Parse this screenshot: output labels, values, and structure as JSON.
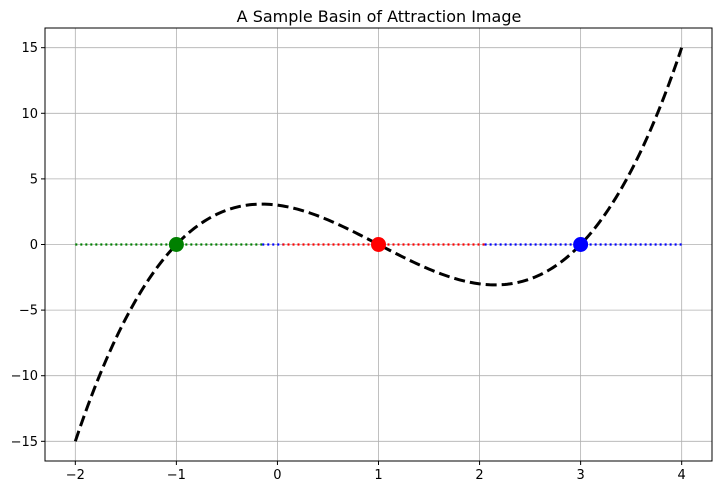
{
  "chart_data": {
    "type": "line",
    "title": "A Sample Basin of Attraction Image",
    "xlabel": "",
    "ylabel": "",
    "xlim": [
      -2.3,
      4.3
    ],
    "ylim": [
      -16.5,
      16.5
    ],
    "x_ticks": [
      -2,
      -1,
      0,
      1,
      2,
      3,
      4
    ],
    "x_tick_labels": [
      "−2",
      "−1",
      "0",
      "1",
      "2",
      "3",
      "4"
    ],
    "y_ticks": [
      -15,
      -10,
      -5,
      0,
      5,
      10,
      15
    ],
    "y_tick_labels": [
      "−15",
      "−10",
      "−5",
      "0",
      "5",
      "10",
      "15"
    ],
    "grid": true,
    "legend": "none",
    "curve": {
      "function": "(x+1)(x-1)(x-3)",
      "style": "dashed",
      "color": "#000000",
      "x": [
        -2.0,
        -1.75,
        -1.5,
        -1.25,
        -1.0,
        -0.75,
        -0.5,
        -0.25,
        0.0,
        0.25,
        0.5,
        0.75,
        1.0,
        1.25,
        1.5,
        1.75,
        2.0,
        2.25,
        2.5,
        2.75,
        3.0,
        3.25,
        3.5,
        3.75,
        4.0
      ],
      "y": [
        -15.0,
        -9.92,
        -5.63,
        -2.11,
        0.0,
        1.64,
        2.63,
        3.05,
        3.0,
        2.58,
        1.88,
        0.98,
        0.0,
        -0.98,
        -1.88,
        -2.58,
        -3.0,
        -3.05,
        -2.63,
        -1.64,
        0.0,
        2.11,
        5.63,
        9.92,
        15.0
      ]
    },
    "basin_segments": [
      {
        "x_start": -2.0,
        "x_end": -0.15,
        "y": 0,
        "color": "#008000",
        "style": "dotted"
      },
      {
        "x_start": -0.15,
        "x_end": 0.05,
        "y": 0,
        "color": "#0000ff",
        "style": "dotted"
      },
      {
        "x_start": 0.05,
        "x_end": 2.05,
        "y": 0,
        "color": "#ff0000",
        "style": "dotted"
      },
      {
        "x_start": 2.05,
        "x_end": 4.0,
        "y": 0,
        "color": "#0000ff",
        "style": "dotted"
      }
    ],
    "roots": [
      {
        "x": -1,
        "y": 0,
        "color": "#008000"
      },
      {
        "x": 1,
        "y": 0,
        "color": "#ff0000"
      },
      {
        "x": 3,
        "y": 0,
        "color": "#0000ff"
      }
    ]
  }
}
